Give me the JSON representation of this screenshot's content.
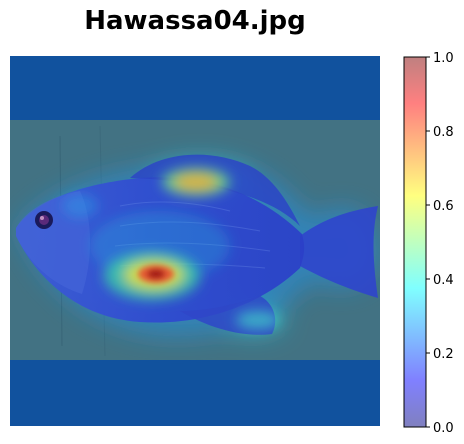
{
  "title": "Hawassa04.jpg",
  "chart_data": {
    "type": "heatmap",
    "title": "Hawassa04.jpg",
    "image_subject": "fish",
    "colormap": "jet",
    "overlay_alpha": 0.5,
    "axes_visible": false,
    "colorbar": {
      "vmin": 0.0,
      "vmax": 1.0,
      "ticks": [
        "0.0",
        "0.2",
        "0.4",
        "0.6",
        "0.8",
        "1.0"
      ],
      "placement": "right"
    },
    "hotspots": [
      {
        "label": "belly",
        "value": 0.95
      },
      {
        "label": "dorsal",
        "value": 0.72
      },
      {
        "label": "body-center",
        "value": 0.35
      },
      {
        "label": "head",
        "value": 0.25
      },
      {
        "label": "lower-fin",
        "value": 0.4
      }
    ]
  }
}
